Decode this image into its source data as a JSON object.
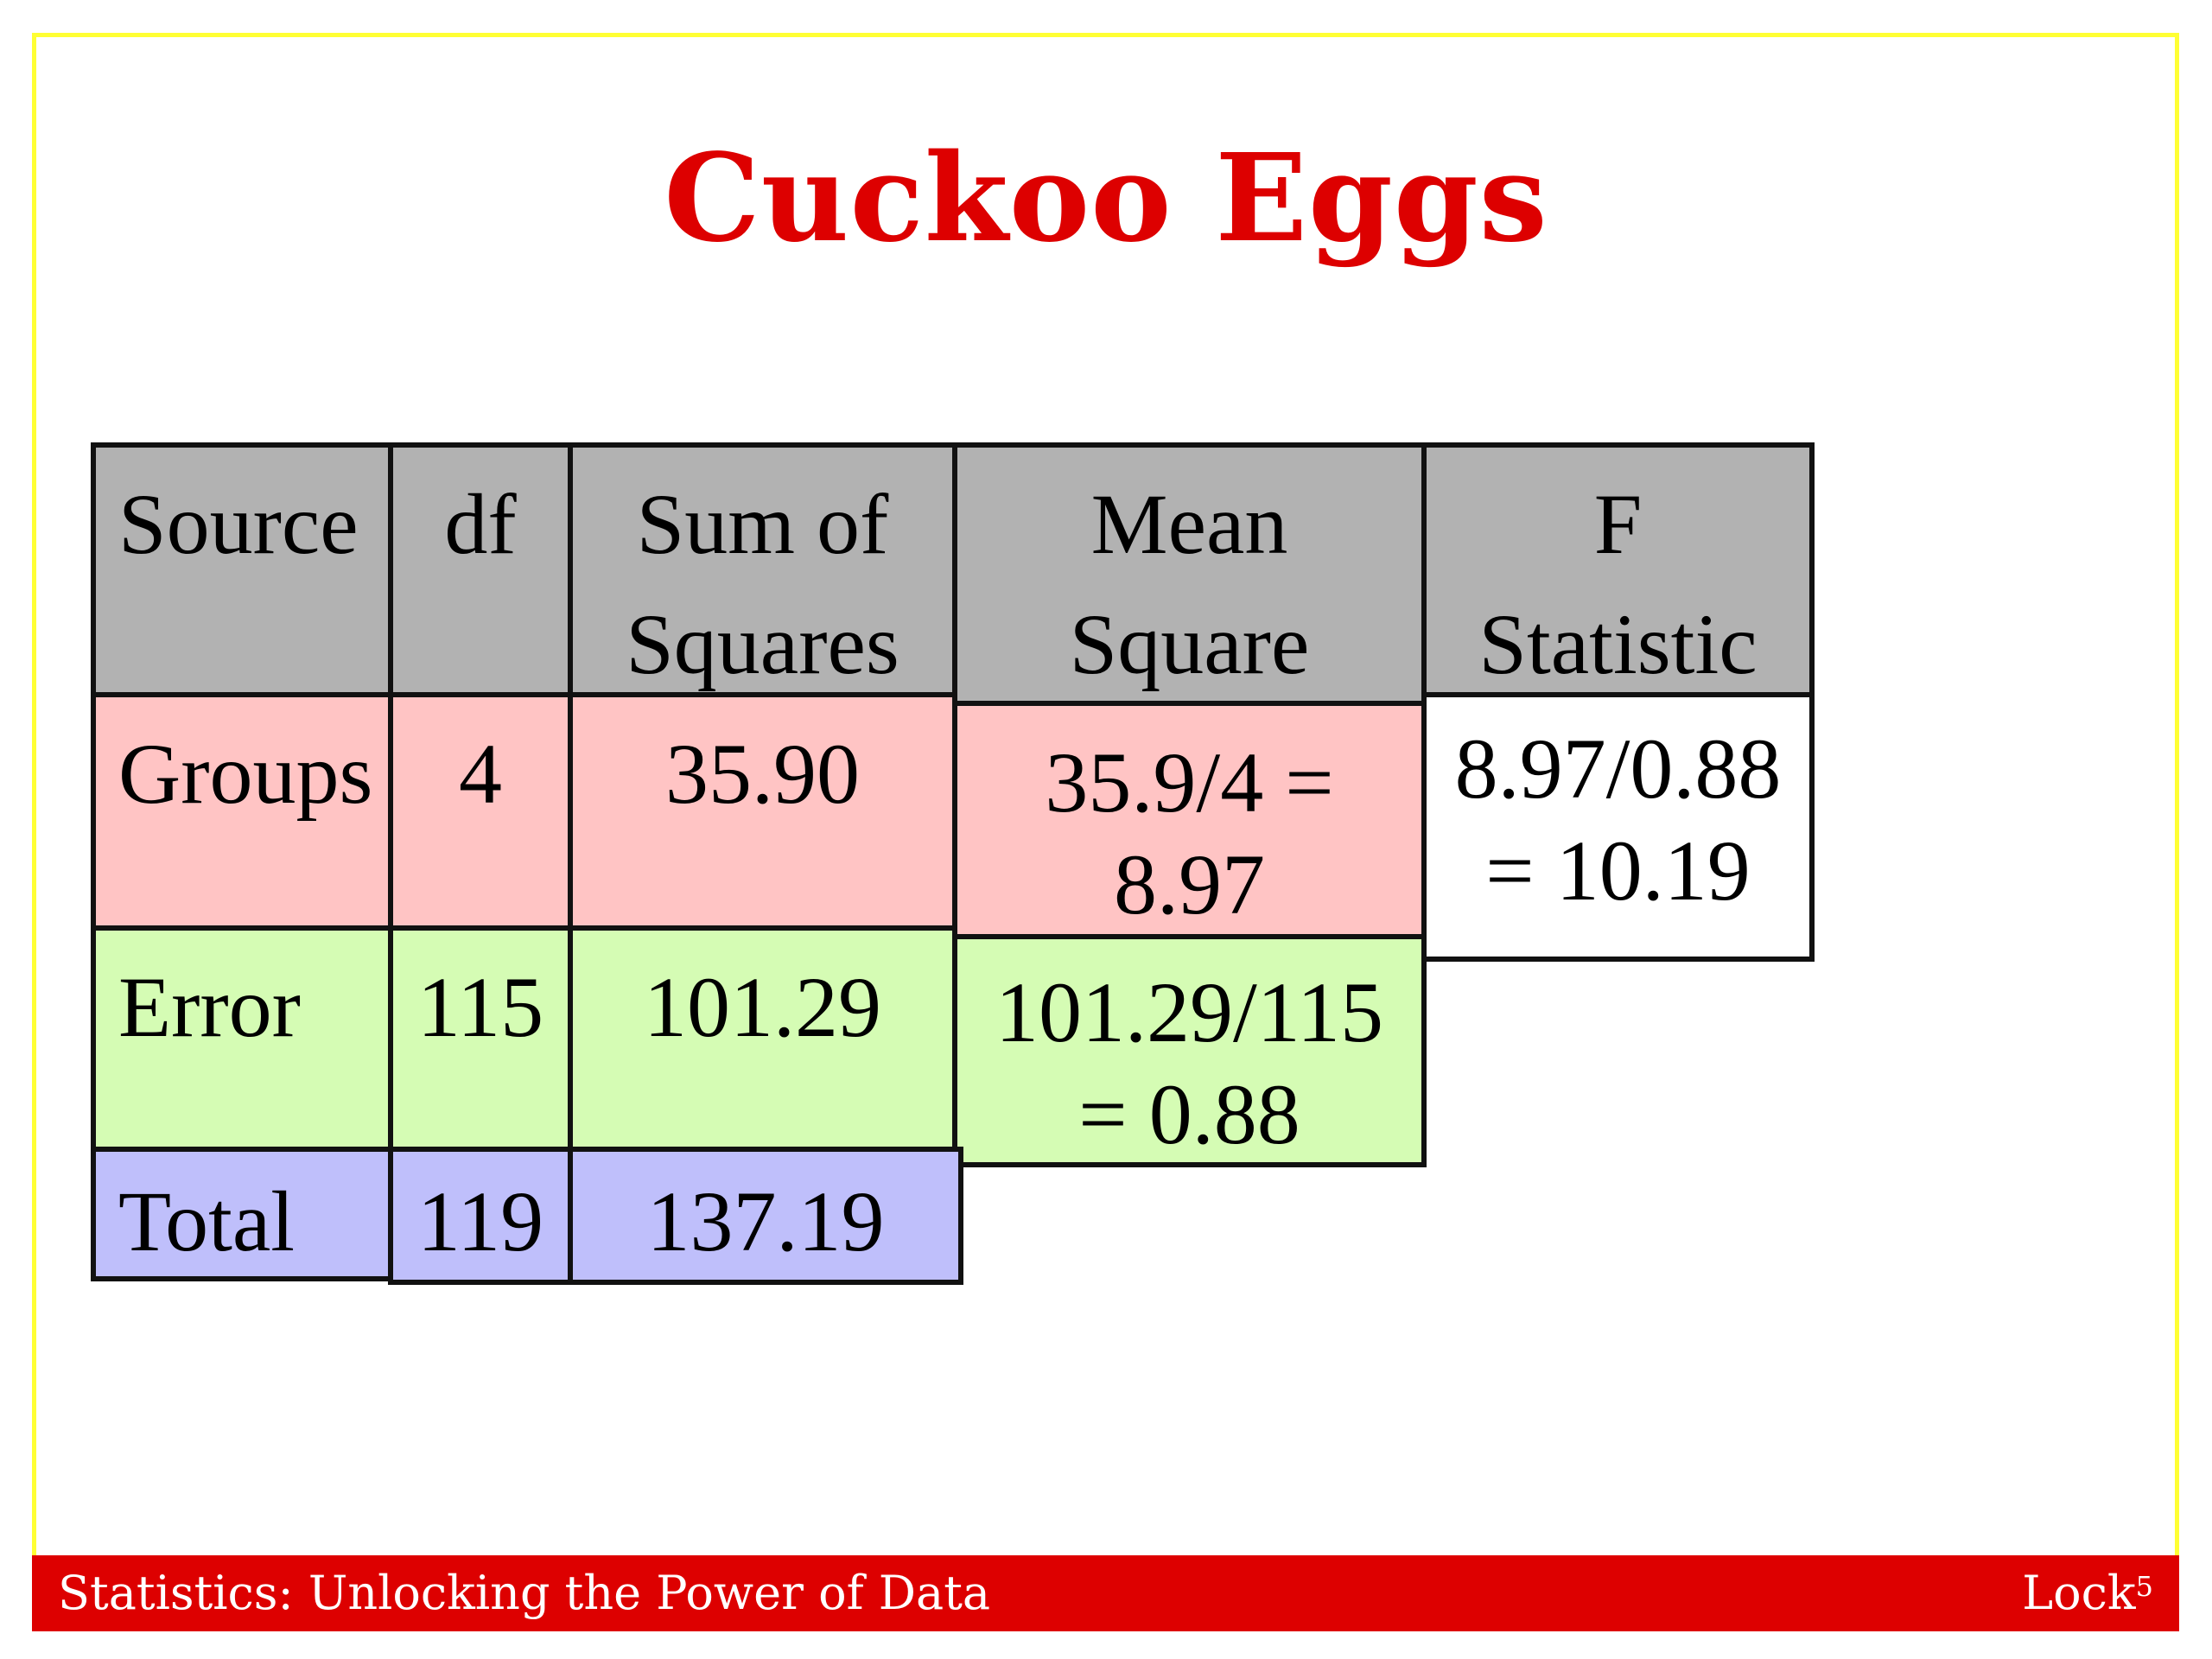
{
  "title": "Cuckoo Eggs",
  "table": {
    "headers": {
      "source": "Source",
      "df": "df",
      "ss_line1": "Sum of",
      "ss_line2": "Squares",
      "ms_line1": "Mean",
      "ms_line2": "Square",
      "f_line1": "F",
      "f_line2": "Statistic"
    },
    "groups": {
      "source": "Groups",
      "df": "4",
      "ss": "35.90",
      "ms_line1": "35.9/4 =",
      "ms_line2": "8.97",
      "f_line1": "8.97/0.88",
      "f_line2": "= 10.19"
    },
    "error": {
      "source": "Error",
      "df": "115",
      "ss": "101.29",
      "ms_line1": "101.29/115",
      "ms_line2": "= 0.88"
    },
    "total": {
      "source": "Total",
      "df": "119",
      "ss": "137.19"
    }
  },
  "footer": {
    "text": "Statistics: Unlocking the Power of Data",
    "author": "Lock",
    "author_sup": "5"
  },
  "colors": {
    "title": "#dd0000",
    "header": "#b2b2b2",
    "groups": "#ffc4c4",
    "error": "#d5fcb4",
    "total": "#bfbffb",
    "frame": "#ffff33",
    "footer_bg": "#dd0000"
  }
}
